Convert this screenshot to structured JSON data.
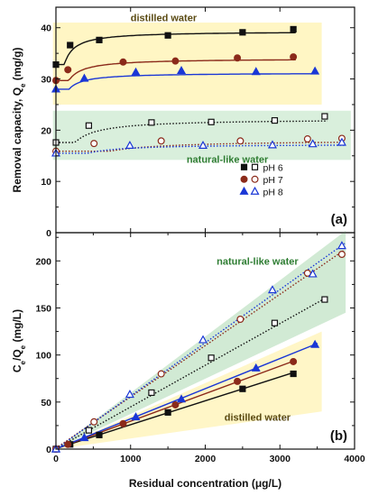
{
  "chart_data": [
    {
      "panel_label": "(a)",
      "type": "scatter",
      "ylabel": "Removal capacity, Q",
      "ylabel_sub": "e",
      "ylabel_unit": " (mg/g)",
      "xlim": [
        0,
        4000
      ],
      "ylim": [
        0,
        44
      ],
      "y_ticks": [
        "0",
        "10",
        "20",
        "30",
        "40"
      ],
      "y_tick_values": [
        0,
        10,
        20,
        30,
        40
      ],
      "annotations": [
        {
          "text": "distilled water",
          "x": 1000,
          "y": 41.3,
          "color": "#5a4a12"
        },
        {
          "text": "natural-like water",
          "x": 1750,
          "y": 13.6,
          "color": "#2e7d32"
        }
      ],
      "bands": [
        {
          "x": [
            -40,
            3560
          ],
          "y": [
            25,
            41
          ],
          "color": "#fff6c4"
        },
        {
          "x": [
            -40,
            3950
          ],
          "y": [
            14.2,
            23.8
          ],
          "color": "#d9efdc"
        }
      ],
      "legend": {
        "position": "right-middle",
        "entries": [
          "pH 6",
          "pH 7",
          "pH 8"
        ]
      },
      "series": [
        {
          "name": "pH 6",
          "condition": "distilled water",
          "marker": "square",
          "filled": true,
          "color": "#111111",
          "x": [
            0,
            190,
            580,
            1500,
            2500,
            3180
          ],
          "y": [
            32.8,
            36.6,
            37.6,
            38.5,
            39.1,
            39.7
          ],
          "fit": {
            "style": "solid",
            "qmax": 39.3,
            "k": 0.045
          }
        },
        {
          "name": "pH 7",
          "condition": "distilled water",
          "marker": "circle",
          "filled": true,
          "color": "#8b2a1a",
          "x": [
            0,
            160,
            900,
            1600,
            2430,
            3180
          ],
          "y": [
            29.7,
            31.8,
            33.3,
            33.5,
            34.1,
            34.3
          ],
          "fit": {
            "style": "solid",
            "qmax": 34.0,
            "k": 0.04
          }
        },
        {
          "name": "pH 8",
          "condition": "distilled water",
          "marker": "triangle",
          "filled": true,
          "color": "#1a37d6",
          "x": [
            0,
            380,
            1070,
            1680,
            2680,
            3470
          ],
          "y": [
            28.0,
            30.1,
            31.3,
            31.6,
            31.4,
            31.5
          ],
          "fit": {
            "style": "solid",
            "qmax": 31.2,
            "k": 0.05
          }
        },
        {
          "name": "pH 6",
          "condition": "natural-like water",
          "marker": "square",
          "filled": false,
          "color": "#111111",
          "x": [
            0,
            440,
            1280,
            2080,
            2930,
            3600
          ],
          "y": [
            17.6,
            20.9,
            21.5,
            21.6,
            21.9,
            22.7
          ],
          "fit": {
            "style": "dotted",
            "qmax": 22.2,
            "k": 0.015
          }
        },
        {
          "name": "pH 7",
          "condition": "natural-like water",
          "marker": "circle",
          "filled": false,
          "color": "#8b2a1a",
          "x": [
            0,
            510,
            1410,
            2470,
            3370,
            3830
          ],
          "y": [
            15.9,
            17.4,
            17.9,
            17.9,
            18.3,
            18.4
          ],
          "fit": {
            "style": "dotted",
            "qmax": 18.1,
            "k": 0.01
          }
        },
        {
          "name": "pH 8",
          "condition": "natural-like water",
          "marker": "triangle",
          "filled": false,
          "color": "#1a37d6",
          "x": [
            0,
            990,
            1970,
            2900,
            3440,
            3830
          ],
          "y": [
            15.5,
            17.0,
            17.0,
            17.1,
            17.3,
            17.6
          ],
          "fit": {
            "style": "dotted",
            "qmax": 17.3,
            "k": 0.02
          }
        }
      ]
    },
    {
      "panel_label": "(b)",
      "type": "scatter",
      "xlabel": "Residual concentration (μg/L)",
      "ylabel_parts": [
        "C",
        "e",
        "/Q",
        "e",
        " (mg/L)"
      ],
      "xlim": [
        0,
        4000
      ],
      "ylim": [
        0,
        230
      ],
      "x_ticks": [
        "0",
        "1000",
        "2000",
        "3000",
        "4000"
      ],
      "x_tick_values": [
        0,
        1000,
        2000,
        3000,
        4000
      ],
      "y_ticks": [
        "0",
        "50",
        "100",
        "150",
        "200"
      ],
      "y_tick_values": [
        0,
        50,
        100,
        150,
        200
      ],
      "annotations": [
        {
          "text": "natural-like water",
          "x": 2700,
          "y": 196,
          "color": "#2e7d32"
        },
        {
          "text": "distilled water",
          "x": 2700,
          "y": 30,
          "color": "#5a4a12"
        }
      ],
      "bands": [
        {
          "polygon": [
            [
              0,
              0
            ],
            [
              3560,
              125
            ],
            [
              3560,
              40
            ],
            [
              0,
              -5
            ]
          ],
          "color": "#fff6c4"
        },
        {
          "polygon": [
            [
              0,
              0
            ],
            [
              3880,
              232
            ],
            [
              3880,
              145
            ],
            [
              0,
              -5
            ]
          ],
          "color": "#cfe9d2"
        }
      ],
      "series": [
        {
          "name": "pH 6",
          "condition": "distilled water",
          "marker": "square",
          "filled": true,
          "color": "#111111",
          "x": [
            0,
            190,
            580,
            1500,
            2500,
            3180
          ],
          "y": [
            0,
            5,
            15,
            39,
            64,
            80
          ],
          "fit": {
            "style": "solid",
            "slope": 0.0254,
            "intercept": 0.5
          }
        },
        {
          "name": "pH 7",
          "condition": "distilled water",
          "marker": "circle",
          "filled": true,
          "color": "#8b2a1a",
          "x": [
            0,
            160,
            900,
            1600,
            2430,
            3180
          ],
          "y": [
            0,
            5,
            27,
            47,
            72,
            93
          ],
          "fit": {
            "style": "solid",
            "slope": 0.0293,
            "intercept": 0.3
          }
        },
        {
          "name": "pH 8",
          "condition": "distilled water",
          "marker": "triangle",
          "filled": true,
          "color": "#1a37d6",
          "x": [
            0,
            380,
            1070,
            1680,
            2680,
            3470
          ],
          "y": [
            0,
            12,
            34,
            53,
            86,
            111
          ],
          "fit": {
            "style": "solid",
            "slope": 0.032,
            "intercept": 0.2
          }
        },
        {
          "name": "pH 6",
          "condition": "natural-like water",
          "marker": "square",
          "filled": false,
          "color": "#111111",
          "x": [
            0,
            440,
            1280,
            2080,
            2930,
            3600
          ],
          "y": [
            0,
            20,
            60,
            97,
            134,
            159
          ],
          "fit": {
            "style": "dotted",
            "slope": 0.0443,
            "intercept": 0.5
          }
        },
        {
          "name": "pH 7",
          "condition": "natural-like water",
          "marker": "circle",
          "filled": false,
          "color": "#8b2a1a",
          "x": [
            0,
            510,
            1410,
            2470,
            3370,
            3830
          ],
          "y": [
            0,
            29,
            80,
            138,
            187,
            207
          ],
          "fit": {
            "style": "dotted",
            "slope": 0.0545,
            "intercept": 1
          }
        },
        {
          "name": "pH 8",
          "condition": "natural-like water",
          "marker": "triangle",
          "filled": false,
          "color": "#1a37d6",
          "x": [
            0,
            990,
            1970,
            2900,
            3440,
            3830
          ],
          "y": [
            0,
            58,
            116,
            169,
            186,
            216
          ],
          "fit": {
            "style": "dotted",
            "slope": 0.0565,
            "intercept": 0
          }
        }
      ]
    }
  ]
}
